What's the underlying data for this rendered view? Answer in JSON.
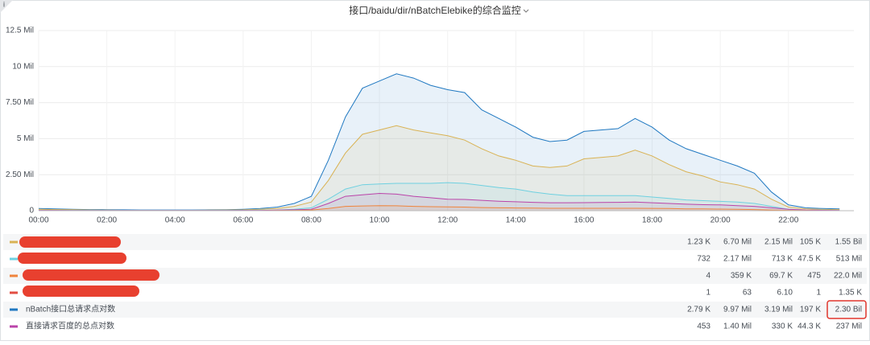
{
  "chart_data": {
    "type": "line",
    "title": "接口/baidu/dir/nBatchElebike的综合监控",
    "info_icon": "i",
    "x": [
      0,
      0.5,
      1,
      1.5,
      2,
      2.5,
      3,
      3.5,
      4,
      4.5,
      5,
      5.5,
      6,
      6.5,
      7,
      7.5,
      8,
      8.5,
      9,
      9.5,
      10,
      10.5,
      11,
      11.5,
      12,
      12.5,
      13,
      13.5,
      14,
      14.5,
      15,
      15.5,
      16,
      16.5,
      17,
      17.5,
      18,
      18.5,
      19,
      19.5,
      20,
      20.5,
      21,
      21.5,
      22,
      22.5,
      23,
      23.5
    ],
    "xlim": [
      0,
      23.92
    ],
    "xticks": [
      {
        "value": 0,
        "label": "00:00"
      },
      {
        "value": 2,
        "label": "02:00"
      },
      {
        "value": 4,
        "label": "04:00"
      },
      {
        "value": 6,
        "label": "06:00"
      },
      {
        "value": 8,
        "label": "08:00"
      },
      {
        "value": 10,
        "label": "10:00"
      },
      {
        "value": 12,
        "label": "12:00"
      },
      {
        "value": 14,
        "label": "14:00"
      },
      {
        "value": 16,
        "label": "16:00"
      },
      {
        "value": 18,
        "label": "18:00"
      },
      {
        "value": 20,
        "label": "20:00"
      },
      {
        "value": 22,
        "label": "22:00"
      }
    ],
    "ylim": [
      0,
      12.5
    ],
    "yticks": [
      0,
      {
        "value": 2.5,
        "label": "2.50 Mil"
      },
      {
        "value": 5,
        "label": "5 Mil"
      },
      {
        "value": 7.5,
        "label": "7.50 Mil"
      },
      {
        "value": 10,
        "label": "10 Mil"
      },
      {
        "value": 12.5,
        "label": "12.5 Mil"
      }
    ],
    "grid": true,
    "series": [
      {
        "name": null,
        "color": "#d9b253",
        "legend_values": [
          "1.23 K",
          "6.70 Mil",
          "2.15 Mil",
          "105 K",
          "1.55 Bil"
        ],
        "values": [
          0.1,
          0.08,
          0.07,
          0.05,
          0.04,
          0.03,
          0.03,
          0.03,
          0.03,
          0.03,
          0.04,
          0.05,
          0.06,
          0.1,
          0.15,
          0.3,
          0.6,
          2.1,
          4.0,
          5.3,
          5.6,
          5.9,
          5.6,
          5.4,
          5.2,
          4.9,
          4.3,
          3.8,
          3.5,
          3.1,
          3.0,
          3.1,
          3.6,
          3.7,
          3.8,
          4.2,
          3.8,
          3.2,
          2.7,
          2.4,
          2.0,
          1.8,
          1.5,
          0.8,
          0.25,
          0.12,
          0.09,
          0.08
        ]
      },
      {
        "name": null,
        "color": "#6ed0e0",
        "legend_values": [
          "732",
          "2.17 Mil",
          "713 K",
          "47.5 K",
          "513 Mil"
        ],
        "values": [
          0.03,
          0.03,
          0.02,
          0.02,
          0.02,
          0.02,
          0.02,
          0.02,
          0.02,
          0.02,
          0.02,
          0.02,
          0.03,
          0.04,
          0.05,
          0.1,
          0.2,
          0.8,
          1.5,
          1.8,
          1.85,
          1.9,
          1.9,
          1.9,
          1.95,
          1.9,
          1.75,
          1.6,
          1.5,
          1.3,
          1.15,
          1.05,
          1.05,
          1.05,
          1.05,
          1.05,
          0.95,
          0.85,
          0.75,
          0.7,
          0.65,
          0.6,
          0.5,
          0.3,
          0.1,
          0.05,
          0.04,
          0.03
        ]
      },
      {
        "name": null,
        "color": "#ef843c",
        "legend_values": [
          "4",
          "359 K",
          "69.7 K",
          "475",
          "22.0 Mil"
        ],
        "values": [
          0,
          0,
          0,
          0,
          0,
          0,
          0,
          0,
          0,
          0,
          0,
          0,
          0,
          0,
          0.01,
          0.02,
          0.05,
          0.15,
          0.3,
          0.33,
          0.35,
          0.34,
          0.3,
          0.28,
          0.26,
          0.25,
          0.22,
          0.2,
          0.19,
          0.18,
          0.17,
          0.17,
          0.17,
          0.17,
          0.17,
          0.17,
          0.16,
          0.15,
          0.13,
          0.12,
          0.11,
          0.1,
          0.08,
          0.05,
          0.02,
          0.01,
          0,
          0
        ]
      },
      {
        "name": null,
        "color": "#e24d42",
        "legend_values": [
          "1",
          "63",
          "6.10",
          "1",
          "1.35 K"
        ],
        "values": [
          0,
          0,
          0,
          0,
          0,
          0,
          0,
          0,
          0,
          0,
          0,
          0,
          0,
          0,
          0,
          0,
          0,
          0,
          0,
          0,
          0,
          0,
          0,
          0,
          0,
          0,
          0,
          0,
          0,
          0,
          0,
          0,
          0,
          0,
          0,
          0,
          0,
          0,
          0,
          0,
          0,
          0,
          0,
          0,
          0,
          0,
          0,
          0
        ]
      },
      {
        "name": "nBatch接口总请求点对数",
        "color": "#1f78c1",
        "legend_values": [
          "2.79 K",
          "9.97 Mil",
          "3.19 Mil",
          "197 K",
          "2.30 Bil"
        ],
        "values": [
          0.15,
          0.12,
          0.1,
          0.08,
          0.07,
          0.06,
          0.05,
          0.05,
          0.05,
          0.05,
          0.06,
          0.07,
          0.1,
          0.15,
          0.25,
          0.5,
          1.0,
          3.5,
          6.5,
          8.5,
          9.0,
          9.5,
          9.2,
          8.7,
          8.4,
          8.2,
          7.0,
          6.4,
          5.8,
          5.1,
          4.8,
          4.9,
          5.5,
          5.6,
          5.7,
          6.4,
          5.8,
          4.9,
          4.3,
          3.9,
          3.5,
          3.1,
          2.6,
          1.3,
          0.4,
          0.2,
          0.15,
          0.12
        ]
      },
      {
        "name": "直接请求百度的总点对数",
        "color": "#ba43a9",
        "legend_values": [
          "453",
          "1.40 Mil",
          "330 K",
          "44.3 K",
          "237 Mil"
        ],
        "values": [
          0.02,
          0.02,
          0.01,
          0.01,
          0.01,
          0.01,
          0.01,
          0.01,
          0.01,
          0.01,
          0.01,
          0.01,
          0.02,
          0.02,
          0.04,
          0.06,
          0.1,
          0.5,
          1.0,
          1.1,
          1.2,
          1.15,
          1.0,
          0.9,
          0.8,
          0.78,
          0.72,
          0.66,
          0.62,
          0.58,
          0.55,
          0.55,
          0.56,
          0.57,
          0.58,
          0.6,
          0.55,
          0.5,
          0.45,
          0.42,
          0.4,
          0.35,
          0.3,
          0.2,
          0.1,
          0.05,
          0.03,
          0.02
        ]
      }
    ]
  }
}
